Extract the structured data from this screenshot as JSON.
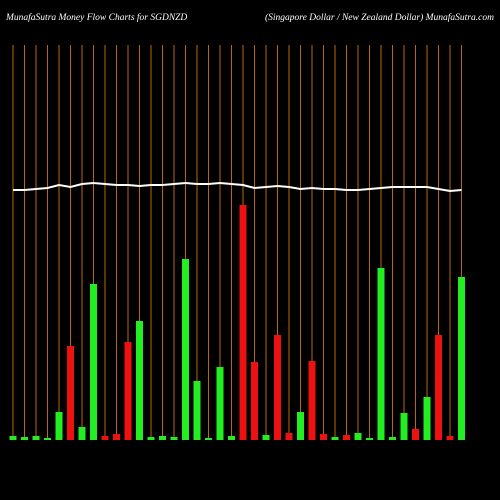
{
  "chart_data": {
    "type": "bar",
    "title": "MunafaSutra  Money Flow  Charts for SGDNZD",
    "subtitle": "(Singapore  Dollar / New  Zealand Dollar) MunafaSutra.com",
    "categories": [
      null,
      null,
      null,
      null,
      null,
      null,
      null,
      null,
      null,
      null,
      null,
      null,
      null,
      null,
      null,
      null,
      null,
      null,
      null,
      null,
      null,
      null,
      null,
      null,
      null,
      null,
      null,
      null,
      null,
      null,
      null,
      null,
      null,
      null,
      null,
      null,
      null,
      null,
      null,
      null
    ],
    "values": [
      4,
      3,
      4,
      2,
      28,
      94,
      13,
      156,
      4,
      6,
      98,
      119,
      3,
      4,
      3,
      181,
      59,
      2,
      73,
      4,
      235,
      78,
      5,
      105,
      7,
      28,
      79,
      6,
      3,
      5,
      7,
      2,
      172,
      3,
      27,
      11,
      43,
      105,
      4,
      163
    ],
    "colors": [
      "#22ee22",
      "#22ee22",
      "#22ee22",
      "#22ee22",
      "#22ee22",
      "#ee1111",
      "#22ee22",
      "#22ee22",
      "#ee1111",
      "#ee1111",
      "#ee1111",
      "#22ee22",
      "#22ee22",
      "#22ee22",
      "#22ee22",
      "#22ee22",
      "#22ee22",
      "#22ee22",
      "#22ee22",
      "#22ee22",
      "#ee1111",
      "#ee1111",
      "#22ee22",
      "#ee1111",
      "#ee1111",
      "#22ee22",
      "#ee1111",
      "#ee1111",
      "#22ee22",
      "#ee1111",
      "#22ee22",
      "#22ee22",
      "#22ee22",
      "#22ee22",
      "#22ee22",
      "#ee1111",
      "#22ee22",
      "#ee1111",
      "#ee1111",
      "#22ee22"
    ],
    "line": {
      "color": "#ffffff",
      "values": [
        250,
        250,
        251,
        252,
        255,
        253,
        256,
        257,
        256,
        255,
        255,
        254,
        255,
        255,
        256,
        257,
        256,
        256,
        257,
        256,
        255,
        252,
        253,
        254,
        253,
        251,
        252,
        251,
        251,
        250,
        250,
        251,
        252,
        253,
        253,
        253,
        253,
        251,
        249,
        250
      ]
    },
    "ylim": [
      0,
      400
    ]
  }
}
